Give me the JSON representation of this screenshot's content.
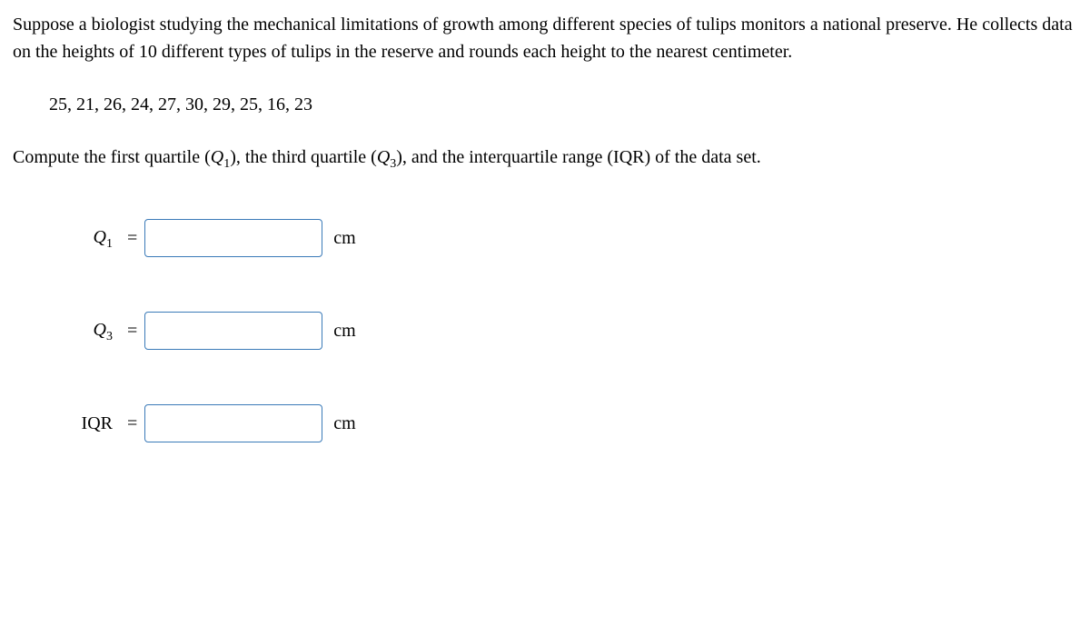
{
  "problem": {
    "paragraph": "Suppose a biologist studying the mechanical limitations of growth among different species of tulips monitors a national preserve. He collects data on the heights of 10 different types of tulips in the reserve and rounds each height to the nearest centimeter.",
    "data_values": "25, 21, 26, 24, 27, 30, 29, 25, 16, 23",
    "instruction_pre": "Compute the first quartile (",
    "q1_symbol": "Q",
    "q1_sub": "1",
    "instruction_mid1": "), the third quartile (",
    "q3_symbol": "Q",
    "q3_sub": "3",
    "instruction_post": "), and the interquartile range (IQR) of the data set."
  },
  "answers": {
    "q1": {
      "symbol": "Q",
      "sub": "1",
      "equals": "=",
      "unit": "cm"
    },
    "q3": {
      "symbol": "Q",
      "sub": "3",
      "equals": "=",
      "unit": "cm"
    },
    "iqr": {
      "label": "IQR",
      "equals": "=",
      "unit": "cm"
    }
  },
  "style": {
    "input_border_color": "#3a7ab8",
    "background_color": "#ffffff",
    "text_color": "#000000",
    "font_family": "Times New Roman",
    "body_fontsize": 20
  }
}
